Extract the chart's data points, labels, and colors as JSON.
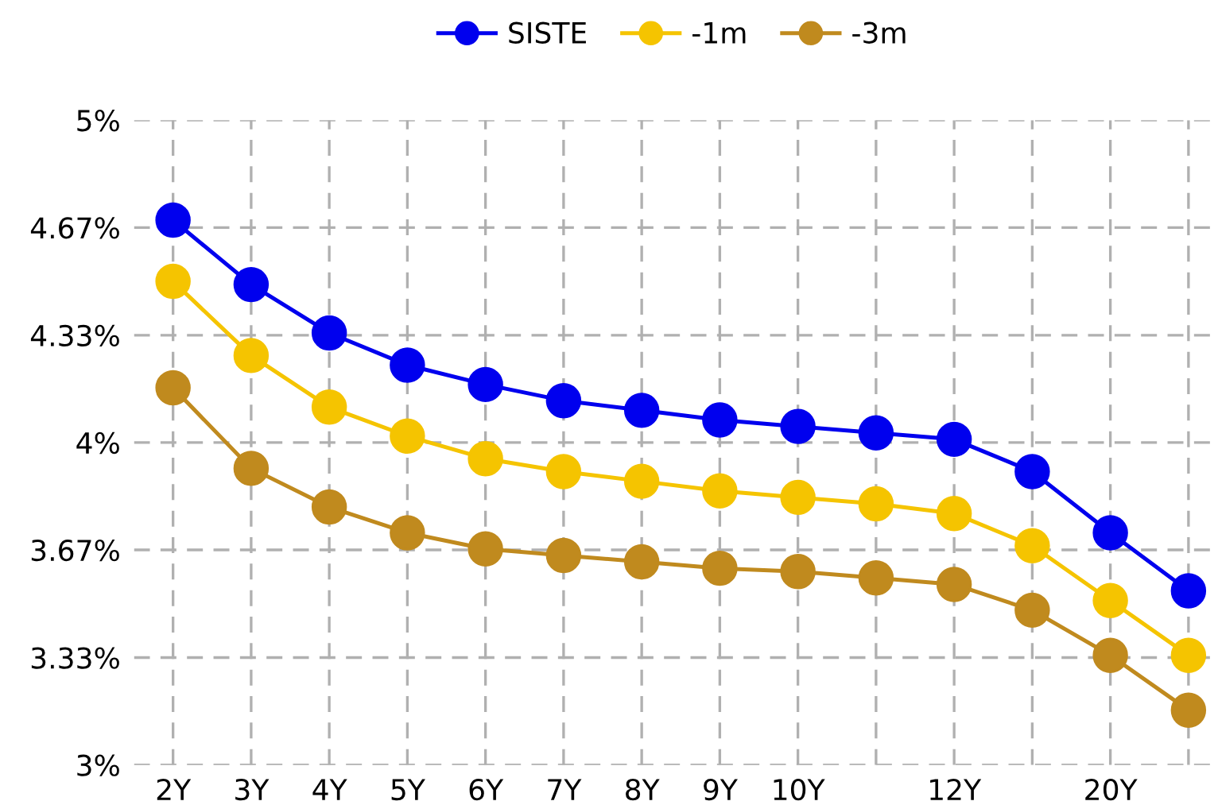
{
  "chart_data": {
    "type": "line",
    "categories": [
      "2Y",
      "3Y",
      "4Y",
      "5Y",
      "6Y",
      "7Y",
      "8Y",
      "9Y",
      "10Y",
      null,
      "12Y",
      null,
      "20Y",
      null
    ],
    "series": [
      {
        "name": "SISTE",
        "color": "#0000ee",
        "values": [
          4.69,
          4.49,
          4.34,
          4.24,
          4.18,
          4.13,
          4.1,
          4.07,
          4.05,
          4.03,
          4.01,
          3.91,
          3.72,
          3.54
        ]
      },
      {
        "name": "-1m",
        "color": "#f5c400",
        "values": [
          4.5,
          4.27,
          4.11,
          4.02,
          3.95,
          3.91,
          3.88,
          3.85,
          3.83,
          3.81,
          3.78,
          3.68,
          3.51,
          3.34
        ]
      },
      {
        "name": "-3m",
        "color": "#c08a1e",
        "values": [
          4.17,
          3.92,
          3.8,
          3.72,
          3.67,
          3.65,
          3.63,
          3.61,
          3.6,
          3.58,
          3.56,
          3.48,
          3.34,
          3.17
        ]
      }
    ],
    "ylim": [
      3,
      5
    ],
    "yticks": [
      {
        "value": 3,
        "label": "3%"
      },
      {
        "value": 3.333,
        "label": "3.33%"
      },
      {
        "value": 3.667,
        "label": "3.67%"
      },
      {
        "value": 4,
        "label": "4%"
      },
      {
        "value": 4.333,
        "label": "4.33%"
      },
      {
        "value": 4.667,
        "label": "4.67%"
      },
      {
        "value": 5,
        "label": "5%"
      }
    ],
    "grid": true,
    "legend": "top",
    "marker": "circle",
    "line_style": "solid"
  }
}
